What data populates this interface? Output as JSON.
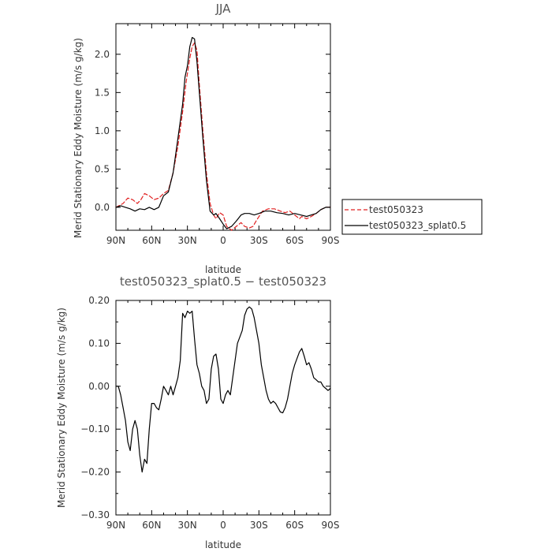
{
  "chart_data": [
    {
      "type": "line",
      "title": "JJA",
      "xlabel": "latitude",
      "ylabel": "Merid Stationary Eddy Moisture (m/s g/kg)",
      "xlim": [
        90,
        -90
      ],
      "ylim": [
        -0.3,
        2.4
      ],
      "x_ticks": [
        {
          "value": 90,
          "label": "90N"
        },
        {
          "value": 60,
          "label": "60N"
        },
        {
          "value": 30,
          "label": "30N"
        },
        {
          "value": 0,
          "label": "0"
        },
        {
          "value": -30,
          "label": "30S"
        },
        {
          "value": -60,
          "label": "60S"
        },
        {
          "value": -90,
          "label": "90S"
        }
      ],
      "y_ticks": [
        {
          "value": 0.0,
          "label": "0.0"
        },
        {
          "value": 0.5,
          "label": "0.5"
        },
        {
          "value": 1.0,
          "label": "1.0"
        },
        {
          "value": 1.5,
          "label": "1.5"
        },
        {
          "value": 2.0,
          "label": "2.0"
        }
      ],
      "grid": false,
      "legend": "right",
      "series": [
        {
          "name": "test050323",
          "color": "#e02020",
          "dash": "dashed",
          "x": [
            90,
            84,
            80,
            76,
            72,
            69,
            66,
            62,
            58,
            54,
            50,
            46,
            42,
            38,
            34,
            31,
            28,
            26,
            24,
            22,
            20,
            17,
            14,
            11,
            8,
            6,
            3,
            0,
            -3,
            -7,
            -11,
            -15,
            -18,
            -22,
            -25,
            -28,
            -33,
            -38,
            -43,
            -48,
            -52,
            -56,
            -60,
            -64,
            -66,
            -70,
            -74,
            -78,
            -82,
            -86,
            -90
          ],
          "y": [
            0.0,
            0.05,
            0.12,
            0.1,
            0.05,
            0.1,
            0.18,
            0.15,
            0.1,
            0.12,
            0.18,
            0.22,
            0.45,
            0.8,
            1.25,
            1.65,
            1.95,
            2.1,
            2.15,
            2.05,
            1.6,
            1.0,
            0.45,
            0.05,
            -0.1,
            -0.15,
            -0.07,
            -0.1,
            -0.25,
            -0.3,
            -0.25,
            -0.2,
            -0.25,
            -0.27,
            -0.25,
            -0.17,
            -0.05,
            -0.02,
            -0.02,
            -0.05,
            -0.07,
            -0.05,
            -0.1,
            -0.15,
            -0.12,
            -0.15,
            -0.12,
            -0.08,
            -0.03,
            0.0,
            0.0
          ]
        },
        {
          "name": "test050323_splat0.5",
          "color": "#000000",
          "dash": "solid",
          "x": [
            90,
            86,
            82,
            78,
            74,
            70,
            66,
            62,
            58,
            54,
            50,
            46,
            42,
            38,
            34,
            32,
            30,
            28,
            26,
            24,
            22,
            20,
            17,
            14,
            11,
            8,
            6,
            3,
            0,
            -3,
            -7,
            -11,
            -15,
            -18,
            -22,
            -26,
            -30,
            -35,
            -40,
            -45,
            -50,
            -55,
            -60,
            -65,
            -70,
            -74,
            -78,
            -82,
            -86,
            -90
          ],
          "y": [
            0.0,
            0.02,
            0.0,
            -0.02,
            -0.05,
            -0.02,
            -0.03,
            0.0,
            -0.03,
            0.0,
            0.15,
            0.2,
            0.45,
            0.9,
            1.35,
            1.7,
            1.85,
            2.1,
            2.22,
            2.2,
            1.9,
            1.5,
            0.9,
            0.35,
            -0.05,
            -0.1,
            -0.08,
            -0.15,
            -0.22,
            -0.28,
            -0.25,
            -0.18,
            -0.1,
            -0.08,
            -0.08,
            -0.1,
            -0.08,
            -0.05,
            -0.05,
            -0.07,
            -0.08,
            -0.1,
            -0.08,
            -0.1,
            -0.12,
            -0.1,
            -0.08,
            -0.03,
            0.0,
            0.0
          ]
        }
      ]
    },
    {
      "type": "line",
      "title": "test050323_splat0.5 − test050323",
      "xlabel": "latitude",
      "ylabel": "Merid Stationary Eddy Moisture (m/s g/kg)",
      "xlim": [
        90,
        -90
      ],
      "ylim": [
        -0.3,
        0.2
      ],
      "x_ticks": [
        {
          "value": 90,
          "label": "90N"
        },
        {
          "value": 60,
          "label": "60N"
        },
        {
          "value": 30,
          "label": "30N"
        },
        {
          "value": 0,
          "label": "0"
        },
        {
          "value": -30,
          "label": "30S"
        },
        {
          "value": -60,
          "label": "60S"
        },
        {
          "value": -90,
          "label": "90S"
        }
      ],
      "y_ticks": [
        {
          "value": -0.3,
          "label": "−0.30"
        },
        {
          "value": -0.2,
          "label": "−0.20"
        },
        {
          "value": -0.1,
          "label": "−0.10"
        },
        {
          "value": 0.0,
          "label": "0.00"
        },
        {
          "value": 0.1,
          "label": "0.10"
        },
        {
          "value": 0.2,
          "label": "0.20"
        }
      ],
      "grid": false,
      "series": [
        {
          "color": "#000000",
          "dash": "solid",
          "x": [
            90,
            88,
            86,
            84,
            82,
            80,
            78,
            76,
            74,
            72,
            70,
            68,
            66,
            64,
            62,
            60,
            58,
            56,
            54,
            52,
            50,
            48,
            46,
            44,
            42,
            40,
            38,
            36,
            34,
            32,
            30,
            28,
            26,
            24,
            22,
            20,
            18,
            16,
            14,
            12,
            10,
            8,
            6,
            4,
            2,
            0,
            -2,
            -4,
            -6,
            -8,
            -10,
            -12,
            -14,
            -16,
            -18,
            -20,
            -22,
            -24,
            -26,
            -28,
            -30,
            -32,
            -34,
            -36,
            -38,
            -40,
            -42,
            -44,
            -46,
            -48,
            -50,
            -52,
            -54,
            -56,
            -58,
            -60,
            -62,
            -64,
            -66,
            -68,
            -70,
            -72,
            -74,
            -76,
            -78,
            -80,
            -82,
            -84,
            -86,
            -88,
            -90
          ],
          "y": [
            0.0,
            0.0,
            -0.02,
            -0.05,
            -0.08,
            -0.13,
            -0.15,
            -0.1,
            -0.08,
            -0.1,
            -0.16,
            -0.2,
            -0.17,
            -0.18,
            -0.1,
            -0.04,
            -0.04,
            -0.05,
            -0.055,
            -0.03,
            0.0,
            -0.01,
            -0.02,
            0.0,
            -0.02,
            0.0,
            0.02,
            0.06,
            0.17,
            0.16,
            0.175,
            0.17,
            0.175,
            0.11,
            0.05,
            0.03,
            0.0,
            -0.01,
            -0.04,
            -0.03,
            0.04,
            0.07,
            0.075,
            0.04,
            -0.03,
            -0.04,
            -0.02,
            -0.01,
            -0.02,
            0.02,
            0.06,
            0.1,
            0.115,
            0.13,
            0.165,
            0.18,
            0.185,
            0.18,
            0.16,
            0.13,
            0.1,
            0.05,
            0.02,
            -0.01,
            -0.03,
            -0.04,
            -0.035,
            -0.04,
            -0.05,
            -0.06,
            -0.062,
            -0.05,
            -0.03,
            0.0,
            0.03,
            0.05,
            0.065,
            0.08,
            0.088,
            0.07,
            0.05,
            0.055,
            0.04,
            0.02,
            0.015,
            0.01,
            0.01,
            0.0,
            -0.005,
            -0.01,
            -0.005
          ]
        }
      ]
    }
  ]
}
